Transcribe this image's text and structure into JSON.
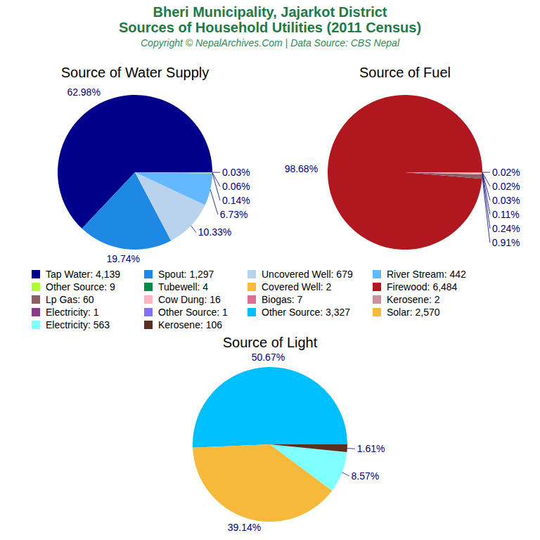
{
  "title": [
    "Bheri Municipality, Jajarkot District",
    "Sources of Household Utilities (2011 Census)"
  ],
  "subtitle": "Copyright © NepalArchives.Com | Data Source: CBS Nepal",
  "chart_data": [
    {
      "type": "pie",
      "title": "Source of Water Supply",
      "categories": [
        "Tap Water",
        "Spout",
        "Uncovered Well",
        "River Stream",
        "Other Source",
        "Tubewell",
        "Covered Well"
      ],
      "values": [
        62.98,
        19.74,
        10.33,
        6.73,
        0.14,
        0.06,
        0.03
      ],
      "value_labels": [
        "62.98%",
        "19.74%",
        "10.33%",
        "6.73%",
        "0.14%",
        "0.06%",
        "0.03%"
      ],
      "counts": [
        4139,
        1297,
        679,
        442,
        9,
        4,
        2
      ],
      "count_labels": [
        "4,139",
        "1,297",
        "679",
        "442",
        "9",
        "4",
        "2"
      ],
      "colors": [
        "#00008B",
        "#1E88E5",
        "#B9D3EE",
        "#63B8FF",
        "#ADFF2F",
        "#008B45",
        "#F6B93B"
      ],
      "data_labels": true
    },
    {
      "type": "pie",
      "title": "Source of Fuel",
      "categories": [
        "Firewood",
        "Lp Gas",
        "Cow Dung",
        "Biogas",
        "Kerosene",
        "Electricity",
        "Other Source"
      ],
      "values": [
        98.68,
        0.91,
        0.24,
        0.11,
        0.03,
        0.02,
        0.02
      ],
      "value_labels": [
        "98.68%",
        "0.91%",
        "0.24%",
        "0.11%",
        "0.03%",
        "0.02%",
        "0.02%"
      ],
      "counts": [
        6484,
        60,
        16,
        7,
        2,
        1,
        1
      ],
      "count_labels": [
        "6,484",
        "60",
        "16",
        "7",
        "2",
        "1",
        "1"
      ],
      "colors": [
        "#B0171F",
        "#8B5F65",
        "#FFB6C1",
        "#DB7093",
        "#CD919E",
        "#8B3A8B",
        "#8470FF"
      ],
      "data_labels": true
    },
    {
      "type": "pie",
      "title": "Source of Light",
      "categories": [
        "Other Source",
        "Solar",
        "Electricity",
        "Kerosene"
      ],
      "values": [
        50.67,
        39.14,
        8.57,
        1.61
      ],
      "value_labels": [
        "50.67%",
        "39.14%",
        "8.57%",
        "1.61%"
      ],
      "counts": [
        3327,
        2570,
        563,
        106
      ],
      "count_labels": [
        "3,327",
        "2,570",
        "563",
        "106"
      ],
      "colors": [
        "#00BFFF",
        "#F6B93B",
        "#7FFFFF",
        "#5C2E1E"
      ],
      "data_labels": true
    }
  ]
}
